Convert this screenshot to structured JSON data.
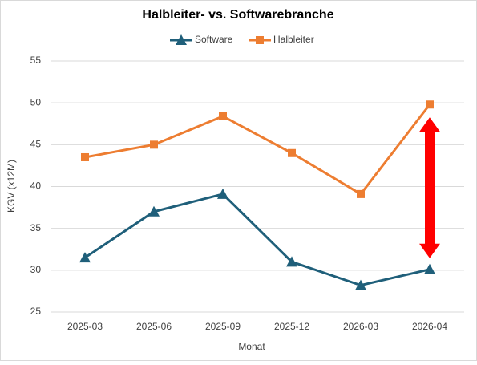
{
  "chart_data": {
    "type": "line",
    "title": "Halbleiter- vs. Softwarebranche",
    "x_label": "Monat",
    "y_label": "KGV (x12M)",
    "categories": [
      "2025-03",
      "2025-06",
      "2025-09",
      "2025-12",
      "2026-03",
      "2026-04"
    ],
    "series": [
      {
        "name": "Software",
        "color": "#1f5f7a",
        "marker": "triangle",
        "values": [
          31.5,
          37.0,
          39.1,
          31.0,
          28.2,
          30.1
        ]
      },
      {
        "name": "Halbleiter",
        "color": "#ed7d31",
        "marker": "square",
        "values": [
          43.5,
          45.0,
          48.4,
          44.0,
          39.1,
          49.8
        ]
      }
    ],
    "ylim": [
      25,
      55
    ],
    "yticks": [
      25,
      30,
      35,
      40,
      45,
      50,
      55
    ],
    "grid": true,
    "legend": "top"
  }
}
